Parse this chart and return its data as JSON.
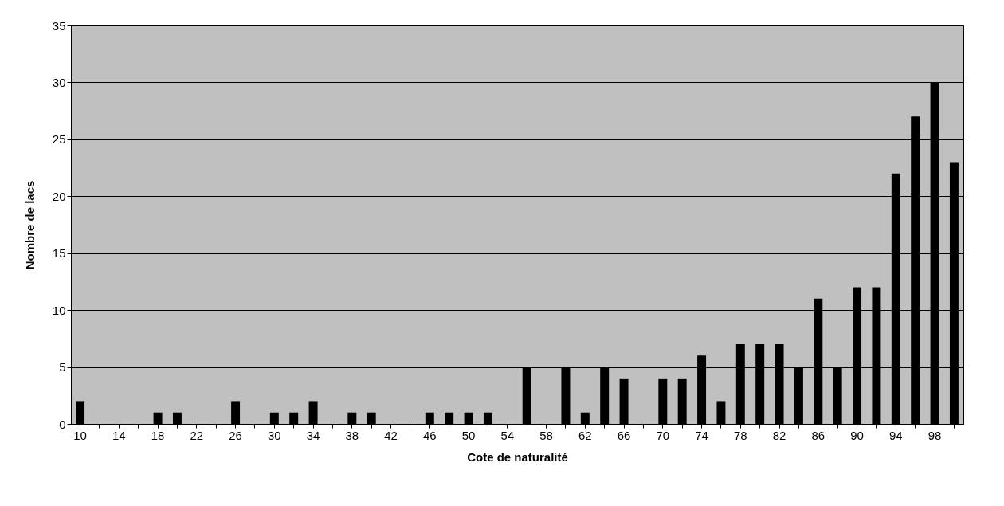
{
  "chart_data": {
    "type": "bar",
    "xlabel": "Cote  de naturalité",
    "ylabel": "Nombre de lacs",
    "categories": [
      "10",
      null,
      "14",
      null,
      "18",
      null,
      "22",
      null,
      "26",
      null,
      "30",
      null,
      "34",
      null,
      "38",
      null,
      "42",
      null,
      "46",
      null,
      "50",
      null,
      "54",
      null,
      "58",
      null,
      "62",
      null,
      "66",
      null,
      "70",
      null,
      "74",
      null,
      "78",
      null,
      "82",
      null,
      "86",
      null,
      "90",
      null,
      "94",
      null,
      "98",
      null
    ],
    "values": [
      2,
      0,
      0,
      0,
      1,
      1,
      0,
      0,
      2,
      0,
      1,
      1,
      2,
      0,
      1,
      1,
      0,
      0,
      1,
      1,
      1,
      1,
      0,
      5,
      0,
      5,
      1,
      5,
      4,
      0,
      4,
      4,
      6,
      2,
      7,
      7,
      7,
      5,
      11,
      5,
      12,
      12,
      22,
      27,
      30,
      23
    ],
    "color": "#000000",
    "ylim": [
      0,
      35
    ],
    "yticks": [
      0,
      5,
      10,
      15,
      20,
      25,
      30,
      35
    ],
    "grid": "y"
  }
}
